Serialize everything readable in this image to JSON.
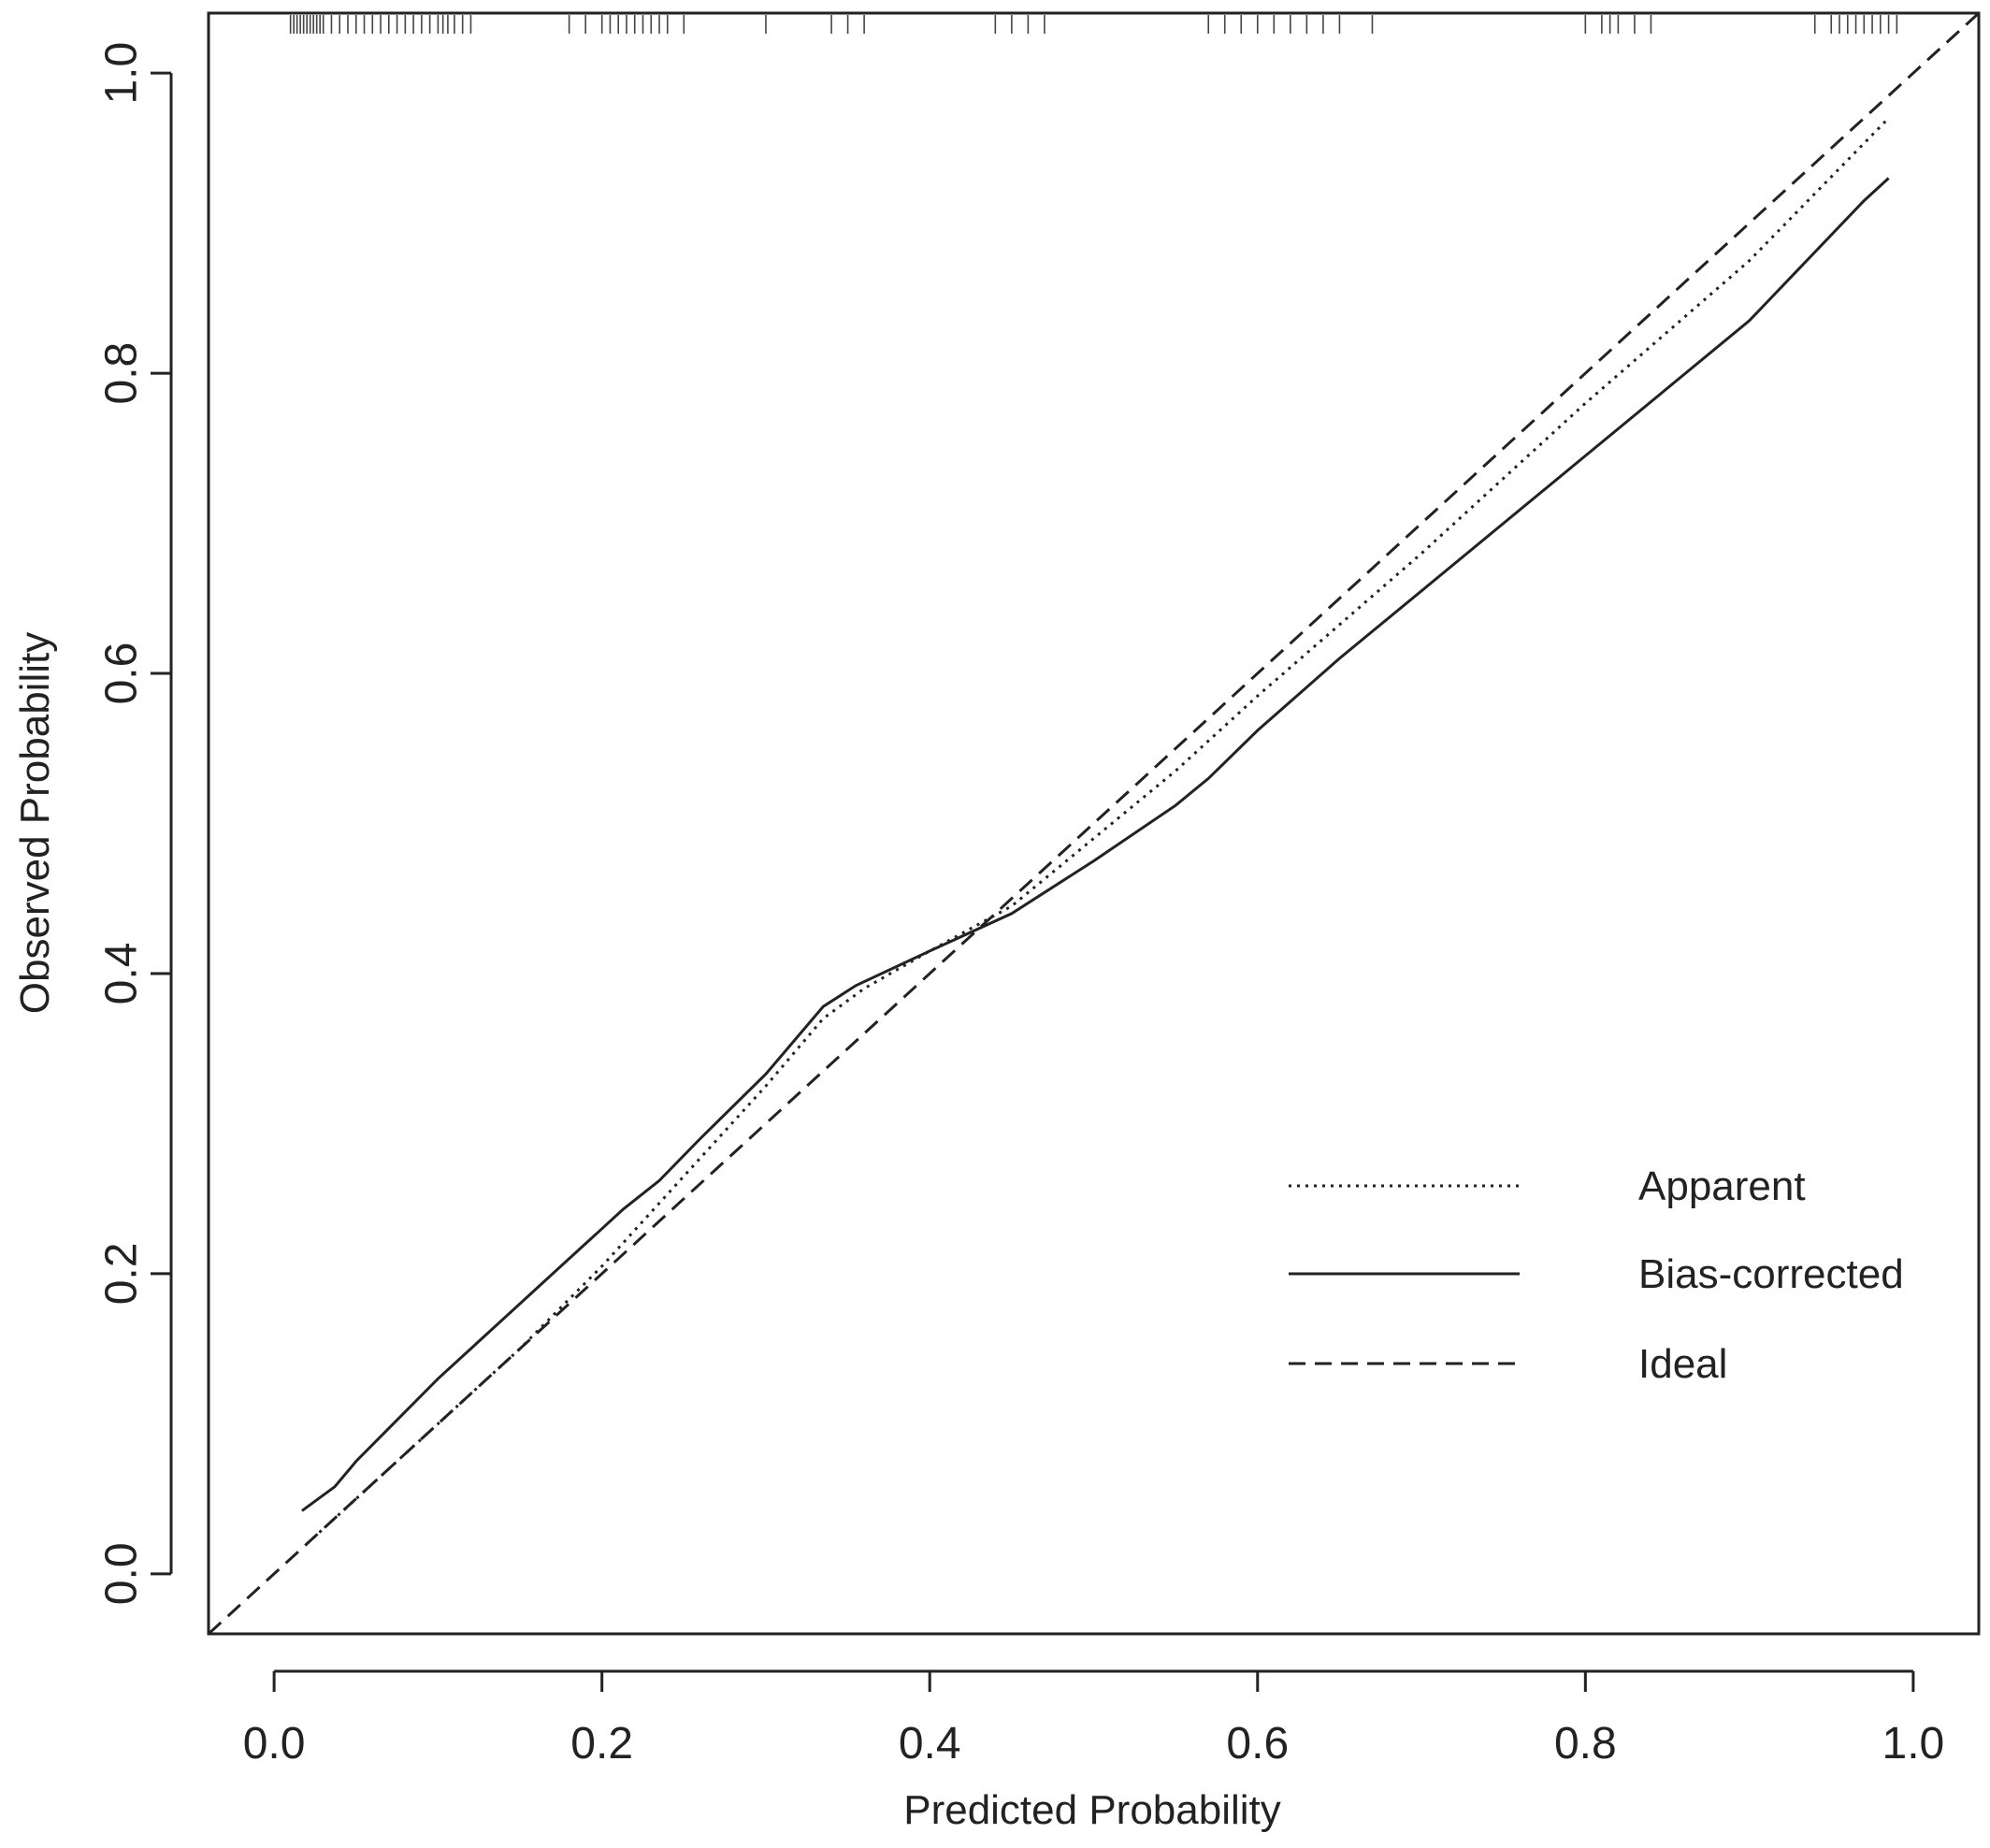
{
  "chart_data": {
    "type": "line",
    "title": "",
    "xlabel": "Predicted Probability",
    "ylabel": "Observed Probability",
    "xlim": [
      -0.04,
      1.04
    ],
    "ylim": [
      -0.04,
      1.04
    ],
    "x_ticks": [
      "0.0",
      "0.2",
      "0.4",
      "0.6",
      "0.8",
      "1.0"
    ],
    "y_ticks": [
      "0.0",
      "0.2",
      "0.4",
      "0.6",
      "0.8",
      "1.0"
    ],
    "grid": false,
    "legend_position": "bottom-right",
    "series": [
      {
        "name": "Apparent",
        "style": "dotted",
        "x": [
          0.02,
          0.05,
          0.1,
          0.15,
          0.2,
          0.25,
          0.3,
          0.335,
          0.36,
          0.4,
          0.45,
          0.5,
          0.55,
          0.6,
          0.7,
          0.8,
          0.9,
          0.985
        ],
        "y": [
          0.02,
          0.05,
          0.1,
          0.15,
          0.205,
          0.265,
          0.325,
          0.37,
          0.39,
          0.415,
          0.445,
          0.49,
          0.535,
          0.585,
          0.68,
          0.78,
          0.875,
          0.97
        ]
      },
      {
        "name": "Bias-corrected",
        "style": "solid",
        "x": [
          0.017,
          0.037,
          0.05,
          0.1,
          0.15,
          0.175,
          0.2,
          0.213,
          0.235,
          0.26,
          0.3,
          0.335,
          0.355,
          0.4,
          0.45,
          0.5,
          0.55,
          0.57,
          0.6,
          0.65,
          0.7,
          0.8,
          0.9,
          0.97,
          0.985
        ],
        "y": [
          0.042,
          0.058,
          0.075,
          0.13,
          0.18,
          0.205,
          0.23,
          0.243,
          0.262,
          0.29,
          0.333,
          0.378,
          0.392,
          0.415,
          0.44,
          0.475,
          0.512,
          0.53,
          0.562,
          0.61,
          0.655,
          0.745,
          0.835,
          0.915,
          0.93
        ]
      },
      {
        "name": "Ideal",
        "style": "dashed",
        "x": [
          -0.04,
          1.04
        ],
        "y": [
          -0.04,
          1.04
        ]
      }
    ],
    "rug_x": [
      0.01,
      0.012,
      0.014,
      0.016,
      0.018,
      0.02,
      0.022,
      0.024,
      0.026,
      0.028,
      0.03,
      0.035,
      0.04,
      0.045,
      0.05,
      0.055,
      0.06,
      0.065,
      0.07,
      0.075,
      0.08,
      0.085,
      0.09,
      0.095,
      0.1,
      0.103,
      0.106,
      0.11,
      0.115,
      0.12,
      0.18,
      0.19,
      0.2,
      0.205,
      0.21,
      0.215,
      0.22,
      0.225,
      0.23,
      0.235,
      0.24,
      0.25,
      0.3,
      0.34,
      0.35,
      0.36,
      0.44,
      0.45,
      0.46,
      0.47,
      0.57,
      0.58,
      0.59,
      0.6,
      0.61,
      0.62,
      0.63,
      0.64,
      0.65,
      0.67,
      0.8,
      0.81,
      0.815,
      0.82,
      0.83,
      0.84,
      0.94,
      0.95,
      0.955,
      0.96,
      0.965,
      0.97,
      0.975,
      0.98,
      0.985,
      0.99
    ]
  }
}
